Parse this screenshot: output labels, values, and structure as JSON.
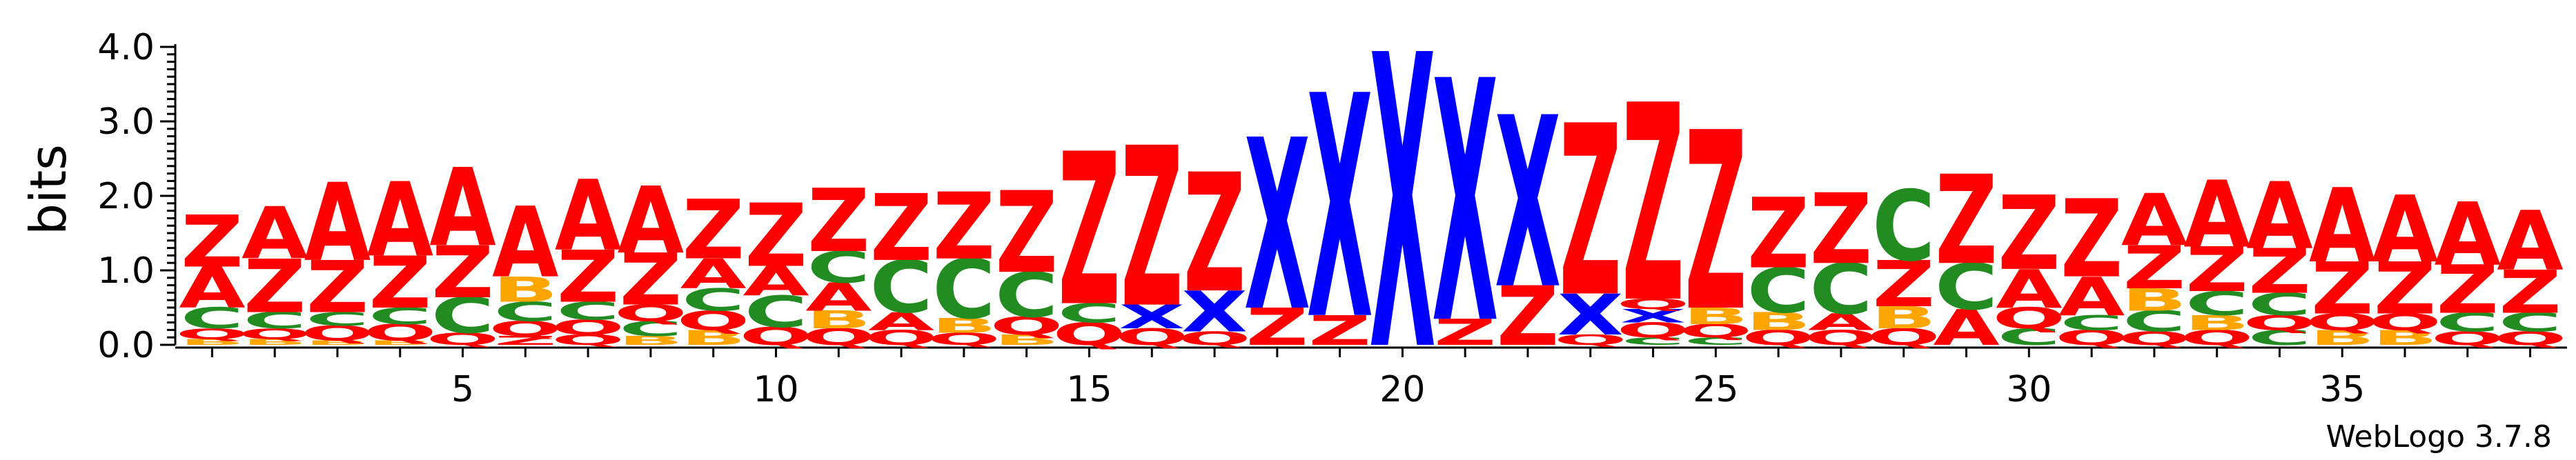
{
  "credit": "WebLogo 3.7.8",
  "chart_data": {
    "type": "sequence_logo",
    "ylabel": "bits",
    "ylim": [
      0,
      4.0
    ],
    "y_ticks": [
      "0.0",
      "1.0",
      "2.0",
      "3.0",
      "4.0"
    ],
    "x_ticks": [
      5,
      10,
      15,
      20,
      25,
      30,
      35
    ],
    "colors": {
      "Z": "#ff0000",
      "A": "#ff0000",
      "X": "#0000ff",
      "C": "#228b22",
      "Q": "#ff0000",
      "B": "#ffa500"
    },
    "positions": [
      {
        "pos": 1,
        "stack": [
          [
            "B",
            0.08
          ],
          [
            "Q",
            0.14
          ],
          [
            "C",
            0.28
          ],
          [
            "A",
            0.55
          ],
          [
            "Z",
            0.7
          ]
        ]
      },
      {
        "pos": 2,
        "stack": [
          [
            "B",
            0.08
          ],
          [
            "Q",
            0.14
          ],
          [
            "C",
            0.22
          ],
          [
            "Z",
            0.72
          ],
          [
            "A",
            0.7
          ]
        ]
      },
      {
        "pos": 3,
        "stack": [
          [
            "B",
            0.06
          ],
          [
            "Q",
            0.2
          ],
          [
            "C",
            0.18
          ],
          [
            "Z",
            0.7
          ],
          [
            "A",
            1.05
          ]
        ]
      },
      {
        "pos": 4,
        "stack": [
          [
            "B",
            0.06
          ],
          [
            "Q",
            0.22
          ],
          [
            "C",
            0.22
          ],
          [
            "Z",
            0.7
          ],
          [
            "A",
            1.0
          ]
        ]
      },
      {
        "pos": 5,
        "stack": [
          [
            "Q",
            0.16
          ],
          [
            "C",
            0.48
          ],
          [
            "Z",
            0.7
          ],
          [
            "A",
            1.05
          ]
        ]
      },
      {
        "pos": 6,
        "stack": [
          [
            "Z",
            0.12
          ],
          [
            "Q",
            0.2
          ],
          [
            "C",
            0.26
          ],
          [
            "B",
            0.34
          ],
          [
            "A",
            0.95
          ]
        ]
      },
      {
        "pos": 7,
        "stack": [
          [
            "Q",
            0.14
          ],
          [
            "Q",
            0.2
          ],
          [
            "C",
            0.24
          ],
          [
            "Z",
            0.7
          ],
          [
            "A",
            0.95
          ]
        ]
      },
      {
        "pos": 8,
        "stack": [
          [
            "B",
            0.12
          ],
          [
            "C",
            0.2
          ],
          [
            "Q",
            0.22
          ],
          [
            "Z",
            0.7
          ],
          [
            "A",
            0.9
          ]
        ]
      },
      {
        "pos": 9,
        "stack": [
          [
            "B",
            0.2
          ],
          [
            "Q",
            0.26
          ],
          [
            "C",
            0.3
          ],
          [
            "A",
            0.4
          ],
          [
            "Z",
            0.8
          ]
        ]
      },
      {
        "pos": 10,
        "stack": [
          [
            "Q",
            0.24
          ],
          [
            "C",
            0.42
          ],
          [
            "A",
            0.4
          ],
          [
            "Z",
            0.85
          ]
        ]
      },
      {
        "pos": 11,
        "stack": [
          [
            "Q",
            0.22
          ],
          [
            "B",
            0.24
          ],
          [
            "A",
            0.38
          ],
          [
            "C",
            0.42
          ],
          [
            "Z",
            0.85
          ]
        ]
      },
      {
        "pos": 12,
        "stack": [
          [
            "Q",
            0.2
          ],
          [
            "A",
            0.24
          ],
          [
            "C",
            0.7
          ],
          [
            "Z",
            0.9
          ]
        ]
      },
      {
        "pos": 13,
        "stack": [
          [
            "Q",
            0.16
          ],
          [
            "B",
            0.2
          ],
          [
            "C",
            0.8
          ],
          [
            "Z",
            0.9
          ]
        ]
      },
      {
        "pos": 14,
        "stack": [
          [
            "B",
            0.14
          ],
          [
            "Q",
            0.24
          ],
          [
            "C",
            0.6
          ],
          [
            "Z",
            1.1
          ]
        ]
      },
      {
        "pos": 15,
        "stack": [
          [
            "Q",
            0.3
          ],
          [
            "C",
            0.26
          ],
          [
            "Z",
            2.05
          ]
        ]
      },
      {
        "pos": 16,
        "stack": [
          [
            "Q",
            0.22
          ],
          [
            "X",
            0.32
          ],
          [
            "Z",
            2.15
          ]
        ]
      },
      {
        "pos": 17,
        "stack": [
          [
            "Q",
            0.18
          ],
          [
            "X",
            0.55
          ],
          [
            "Z",
            1.6
          ]
        ]
      },
      {
        "pos": 18,
        "stack": [
          [
            "Z",
            0.5
          ],
          [
            "X",
            2.3
          ]
        ]
      },
      {
        "pos": 19,
        "stack": [
          [
            "Z",
            0.4
          ],
          [
            "X",
            3.0
          ]
        ]
      },
      {
        "pos": 20,
        "stack": [
          [
            "X",
            3.95
          ]
        ]
      },
      {
        "pos": 21,
        "stack": [
          [
            "Z",
            0.35
          ],
          [
            "X",
            3.25
          ]
        ]
      },
      {
        "pos": 22,
        "stack": [
          [
            "Z",
            0.8
          ],
          [
            "X",
            2.3
          ]
        ]
      },
      {
        "pos": 23,
        "stack": [
          [
            "Q",
            0.14
          ],
          [
            "X",
            0.55
          ],
          [
            "Z",
            2.3
          ]
        ]
      },
      {
        "pos": 24,
        "stack": [
          [
            "C",
            0.1
          ],
          [
            "Q",
            0.2
          ],
          [
            "X",
            0.18
          ],
          [
            "Q",
            0.14
          ],
          [
            "Z",
            2.65
          ]
        ]
      },
      {
        "pos": 25,
        "stack": [
          [
            "C",
            0.1
          ],
          [
            "Q",
            0.18
          ],
          [
            "B",
            0.22
          ],
          [
            "Z",
            2.4
          ]
        ]
      },
      {
        "pos": 26,
        "stack": [
          [
            "Q",
            0.2
          ],
          [
            "B",
            0.24
          ],
          [
            "C",
            0.6
          ],
          [
            "Z",
            0.95
          ]
        ]
      },
      {
        "pos": 27,
        "stack": [
          [
            "Q",
            0.2
          ],
          [
            "A",
            0.22
          ],
          [
            "C",
            0.68
          ],
          [
            "Z",
            0.95
          ]
        ]
      },
      {
        "pos": 28,
        "stack": [
          [
            "Q",
            0.22
          ],
          [
            "B",
            0.3
          ],
          [
            "Z",
            0.62
          ],
          [
            "C",
            0.95
          ]
        ]
      },
      {
        "pos": 29,
        "stack": [
          [
            "A",
            0.48
          ],
          [
            "C",
            0.62
          ],
          [
            "Z",
            1.2
          ]
        ]
      },
      {
        "pos": 30,
        "stack": [
          [
            "C",
            0.22
          ],
          [
            "Q",
            0.28
          ],
          [
            "A",
            0.52
          ],
          [
            "Z",
            1.0
          ]
        ]
      },
      {
        "pos": 31,
        "stack": [
          [
            "Q",
            0.2
          ],
          [
            "C",
            0.2
          ],
          [
            "A",
            0.52
          ],
          [
            "Z",
            1.05
          ]
        ]
      },
      {
        "pos": 32,
        "stack": [
          [
            "Q",
            0.18
          ],
          [
            "C",
            0.28
          ],
          [
            "B",
            0.3
          ],
          [
            "Z",
            0.58
          ],
          [
            "A",
            0.7
          ]
        ]
      },
      {
        "pos": 33,
        "stack": [
          [
            "Q",
            0.2
          ],
          [
            "B",
            0.2
          ],
          [
            "C",
            0.32
          ],
          [
            "Z",
            0.6
          ],
          [
            "A",
            0.9
          ]
        ]
      },
      {
        "pos": 34,
        "stack": [
          [
            "C",
            0.2
          ],
          [
            "Q",
            0.2
          ],
          [
            "C",
            0.3
          ],
          [
            "Z",
            0.6
          ],
          [
            "A",
            0.9
          ]
        ]
      },
      {
        "pos": 35,
        "stack": [
          [
            "B",
            0.2
          ],
          [
            "Q",
            0.22
          ],
          [
            "Z",
            0.7
          ],
          [
            "A",
            1.0
          ]
        ]
      },
      {
        "pos": 36,
        "stack": [
          [
            "B",
            0.2
          ],
          [
            "Q",
            0.22
          ],
          [
            "Z",
            0.7
          ],
          [
            "A",
            0.9
          ]
        ]
      },
      {
        "pos": 37,
        "stack": [
          [
            "Q",
            0.18
          ],
          [
            "C",
            0.25
          ],
          [
            "Z",
            0.65
          ],
          [
            "A",
            0.85
          ]
        ]
      },
      {
        "pos": 38,
        "stack": [
          [
            "Q",
            0.18
          ],
          [
            "C",
            0.25
          ],
          [
            "Z",
            0.58
          ],
          [
            "A",
            0.8
          ]
        ]
      }
    ]
  }
}
